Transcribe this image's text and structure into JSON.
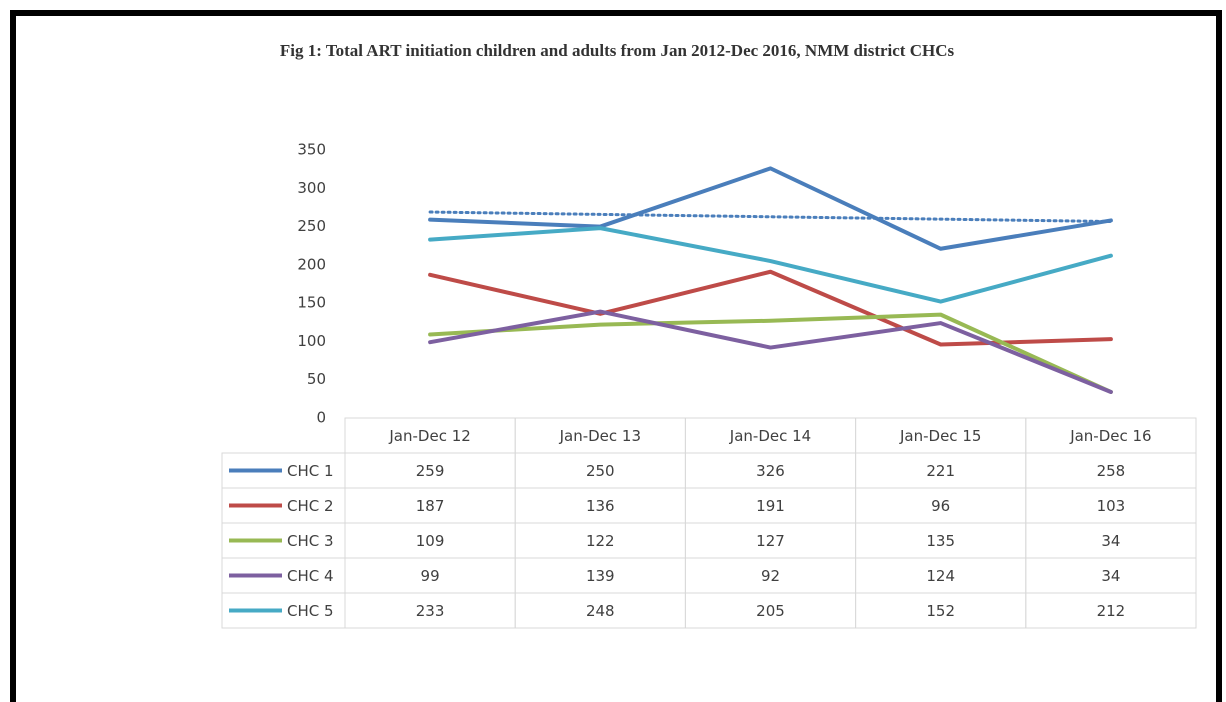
{
  "chart_data": {
    "type": "line",
    "title": "Fig 1: Total ART initiation children and adults from Jan 2012-Dec 2016, NMM district CHCs",
    "categories": [
      "Jan-Dec 12",
      "Jan-Dec 13",
      "Jan-Dec 14",
      "Jan-Dec 15",
      "Jan-Dec 16"
    ],
    "series": [
      {
        "name": "CHC 1",
        "color": "#4a7ebb",
        "values": [
          259,
          250,
          326,
          221,
          258
        ]
      },
      {
        "name": "CHC 2",
        "color": "#be4b48",
        "values": [
          187,
          136,
          191,
          96,
          103
        ]
      },
      {
        "name": "CHC 3",
        "color": "#98b954",
        "values": [
          109,
          122,
          127,
          135,
          34
        ]
      },
      {
        "name": "CHC 4",
        "color": "#7d60a0",
        "values": [
          99,
          139,
          92,
          124,
          34
        ]
      },
      {
        "name": "CHC 5",
        "color": "#46aac5",
        "values": [
          233,
          248,
          205,
          152,
          212
        ]
      }
    ],
    "ylim": [
      0,
      350
    ],
    "yticks": [
      0,
      50,
      100,
      150,
      200,
      250,
      300,
      350
    ],
    "grid": false,
    "trendline": {
      "series": 0,
      "kind": "linear"
    }
  }
}
